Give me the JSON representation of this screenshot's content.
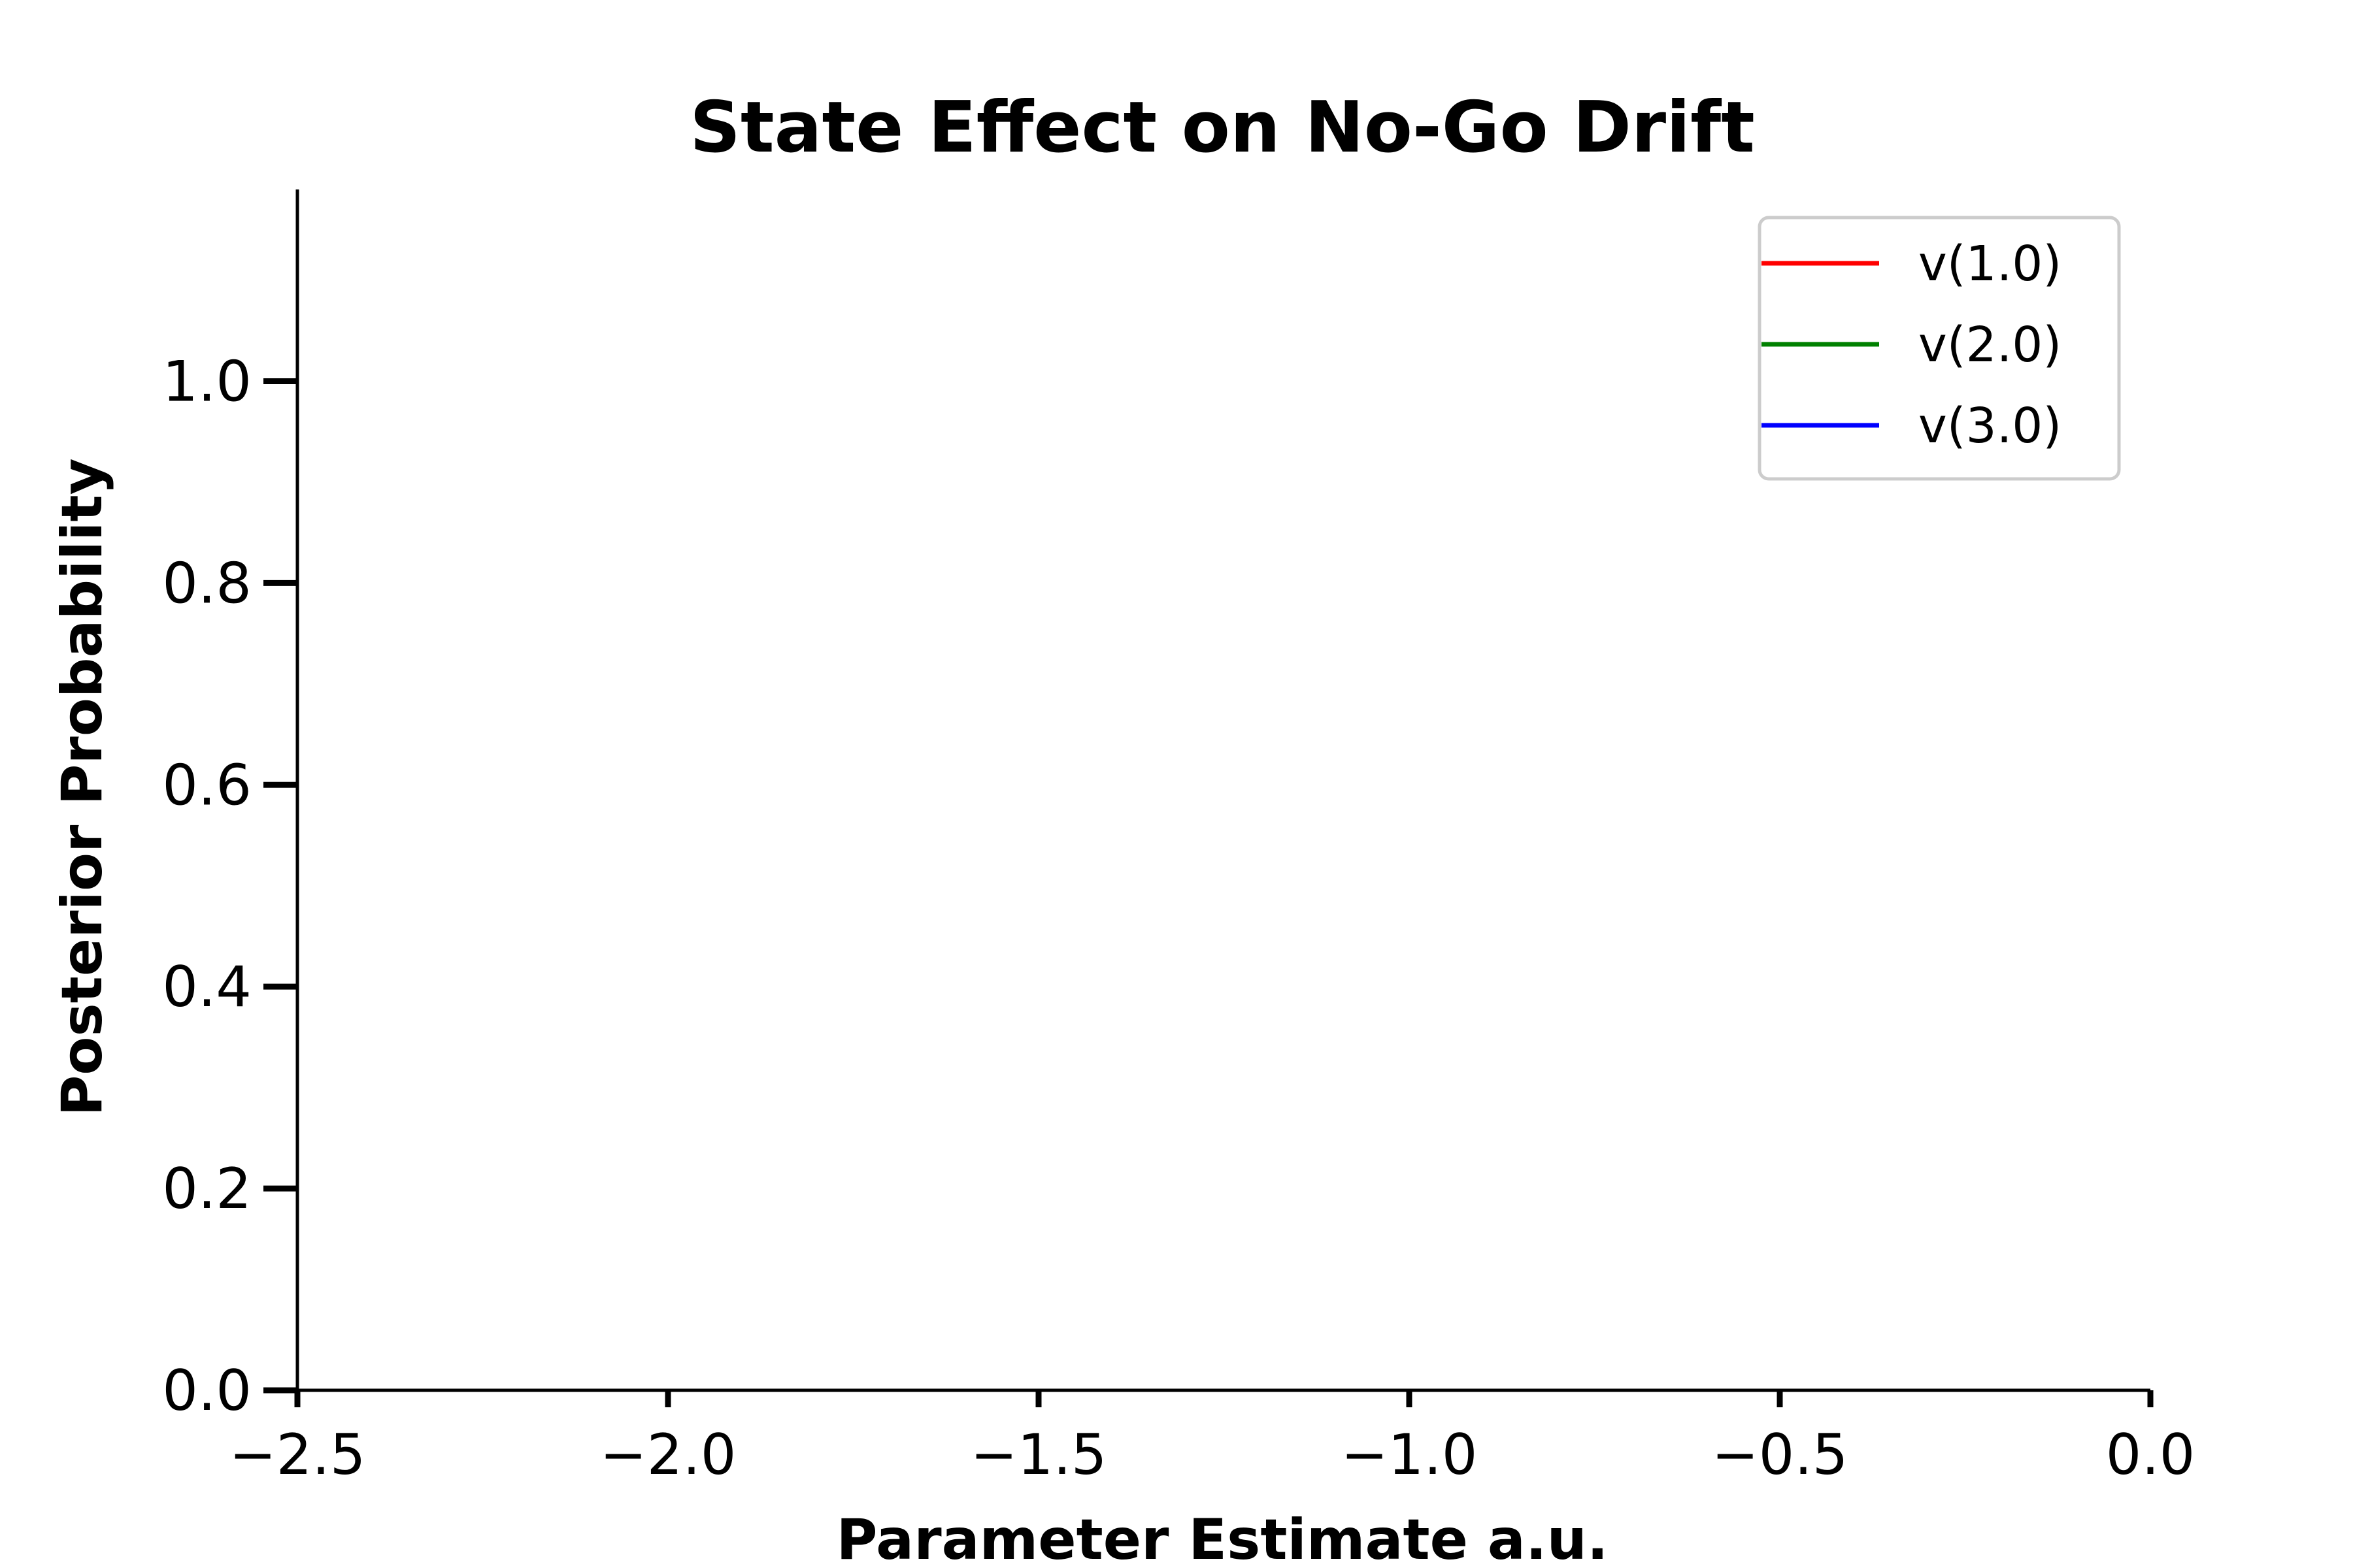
{
  "chart_data": {
    "type": "line",
    "title": "State Effect on No-Go Drift",
    "xlabel": "Parameter Estimate a.u.",
    "ylabel": "Posterior Probability",
    "xlim": [
      -2.5,
      0.0
    ],
    "ylim": [
      0.0,
      1.19
    ],
    "x_ticks": [
      -2.5,
      -2.0,
      -1.5,
      -1.0,
      -0.5,
      0.0
    ],
    "x_tick_labels": [
      "−2.5",
      "−2.0",
      "−1.5",
      "−1.0",
      "−0.5",
      "0.0"
    ],
    "y_ticks": [
      0.0,
      0.2,
      0.4,
      0.6,
      0.8,
      1.0
    ],
    "y_tick_labels": [
      "0.0",
      "0.2",
      "0.4",
      "0.6",
      "0.8",
      "1.0"
    ],
    "grid": false,
    "legend_position": "top-right",
    "series": [
      {
        "name": "v(1.0)",
        "color": "#ff0000",
        "x": [],
        "y": []
      },
      {
        "name": "v(2.0)",
        "color": "#008000",
        "x": [],
        "y": []
      },
      {
        "name": "v(3.0)",
        "color": "#0000ff",
        "x": [],
        "y": []
      }
    ]
  }
}
